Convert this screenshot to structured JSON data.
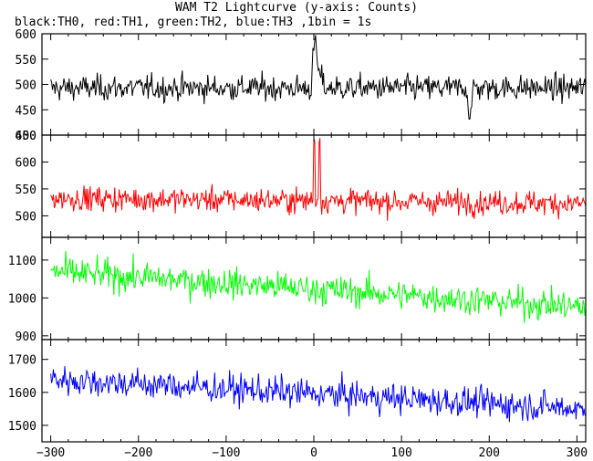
{
  "title": "WAM T2 Lightcurve (y-axis: Counts)",
  "subtitle": "black:TH0, red:TH1, green:TH2, blue:TH3 ,1bin = 1s",
  "chart_data": [
    {
      "type": "line",
      "series": [
        {
          "color": "#000000",
          "baseline": 493,
          "noise": 22,
          "trend": 0,
          "burst": 1,
          "end_dip": 1
        }
      ],
      "xlim": [
        -310,
        310
      ],
      "ylim": [
        400,
        600
      ],
      "yticks": [
        450,
        500,
        550,
        600
      ],
      "ytick_labels": [
        "450",
        "500",
        "550",
        "600"
      ],
      "partial_bottom_label": "400"
    },
    {
      "type": "line",
      "series": [
        {
          "color": "#ff0000",
          "baseline": 533,
          "noise": 20,
          "trend": -10,
          "burst": 2,
          "end_dip": 0
        }
      ],
      "xlim": [
        -310,
        310
      ],
      "ylim": [
        460,
        650
      ],
      "yticks": [
        500,
        550,
        600,
        650
      ],
      "ytick_labels": [
        "500",
        "550",
        "600",
        "650"
      ]
    },
    {
      "type": "line",
      "series": [
        {
          "color": "#00ff00",
          "baseline": 1070,
          "noise": 35,
          "trend": -95,
          "burst": 0,
          "end_dip": 0
        }
      ],
      "xlim": [
        -310,
        310
      ],
      "ylim": [
        890,
        1160
      ],
      "yticks": [
        900,
        1000,
        1100
      ],
      "ytick_labels": [
        "900",
        "1000",
        "1100"
      ]
    },
    {
      "type": "line",
      "series": [
        {
          "color": "#0000ff",
          "baseline": 1640,
          "noise": 40,
          "trend": -90,
          "burst": 0,
          "end_dip": 0
        }
      ],
      "xlim": [
        -310,
        310
      ],
      "ylim": [
        1450,
        1760
      ],
      "yticks": [
        1500,
        1600,
        1700
      ],
      "ytick_labels": [
        "1500",
        "1600",
        "1700"
      ],
      "xticks": [
        -300,
        -200,
        -100,
        0,
        100,
        200,
        300
      ],
      "xtick_labels": [
        "−300",
        "−200",
        "−100",
        "0",
        "100",
        "200",
        "300"
      ]
    }
  ]
}
